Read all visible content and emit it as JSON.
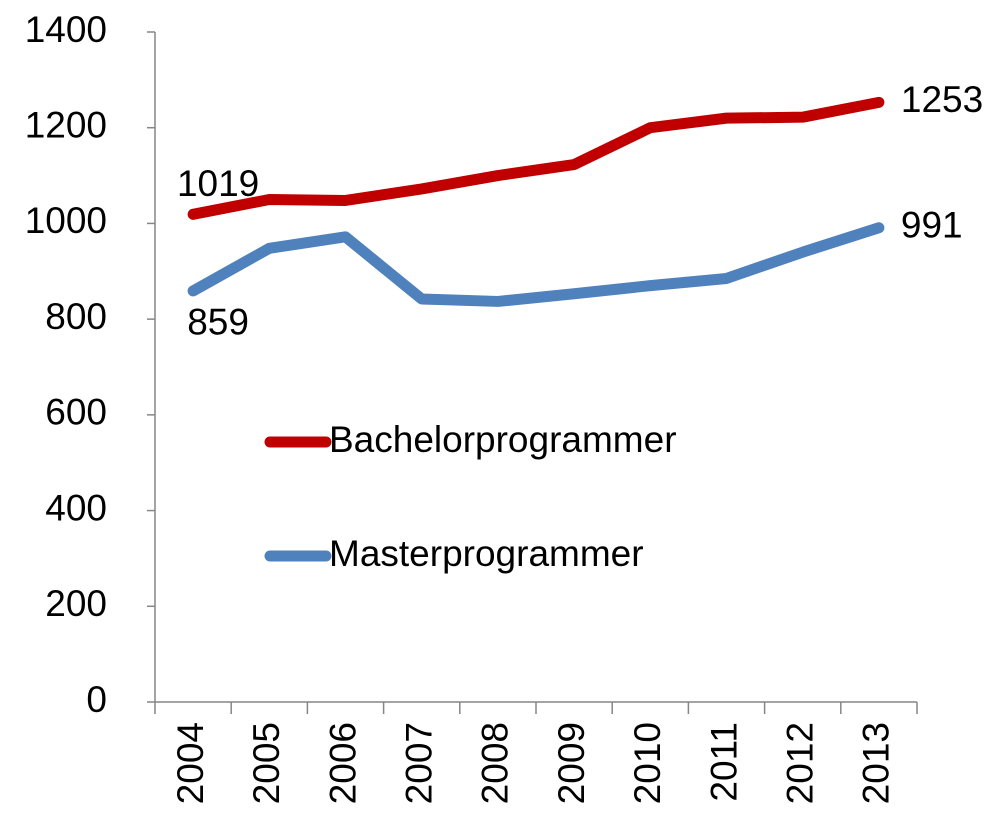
{
  "chart_data": {
    "type": "line",
    "categories": [
      "2004",
      "2005",
      "2006",
      "2007",
      "2008",
      "2009",
      "2010",
      "2011",
      "2012",
      "2013"
    ],
    "series": [
      {
        "name": "Bachelorprogrammer",
        "color": "#c00000",
        "values": [
          1019,
          1050,
          1048,
          1072,
          1100,
          1123,
          1200,
          1220,
          1222,
          1253
        ]
      },
      {
        "name": "Masterprogrammer",
        "color": "#4f81bd",
        "values": [
          859,
          948,
          972,
          842,
          837,
          853,
          870,
          885,
          940,
          991
        ]
      }
    ],
    "ylim": [
      0,
      1400
    ],
    "yticks": [
      0,
      200,
      400,
      600,
      800,
      1000,
      1200,
      1400
    ],
    "grid": false
  }
}
